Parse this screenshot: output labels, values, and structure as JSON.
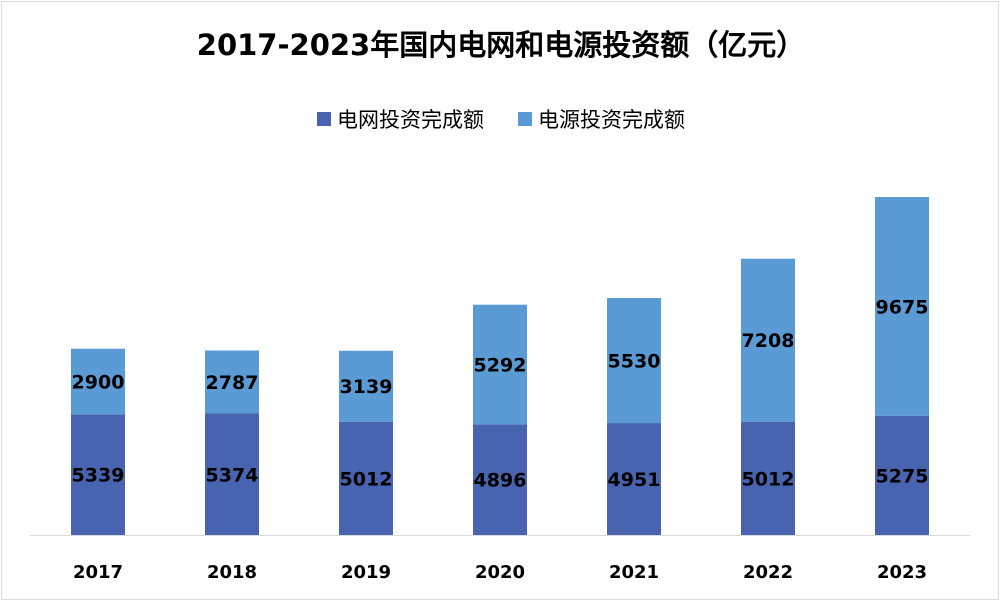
{
  "chart_data": {
    "type": "bar",
    "stacked": true,
    "title": "2017-2023年国内电网和电源投资额（亿元）",
    "categories": [
      "2017",
      "2018",
      "2019",
      "2020",
      "2021",
      "2022",
      "2023"
    ],
    "series": [
      {
        "name": "电网投资完成额",
        "color": "#4864b0",
        "values": [
          5339,
          5374,
          5012,
          4896,
          4951,
          5012,
          5275
        ]
      },
      {
        "name": "电源投资完成额",
        "color": "#5b9bd5",
        "values": [
          2900,
          2787,
          3139,
          5292,
          5530,
          7208,
          9675
        ]
      }
    ],
    "ylim": [
      0,
      15000
    ],
    "grid": false,
    "legend": "top-center",
    "data_labels": true
  }
}
